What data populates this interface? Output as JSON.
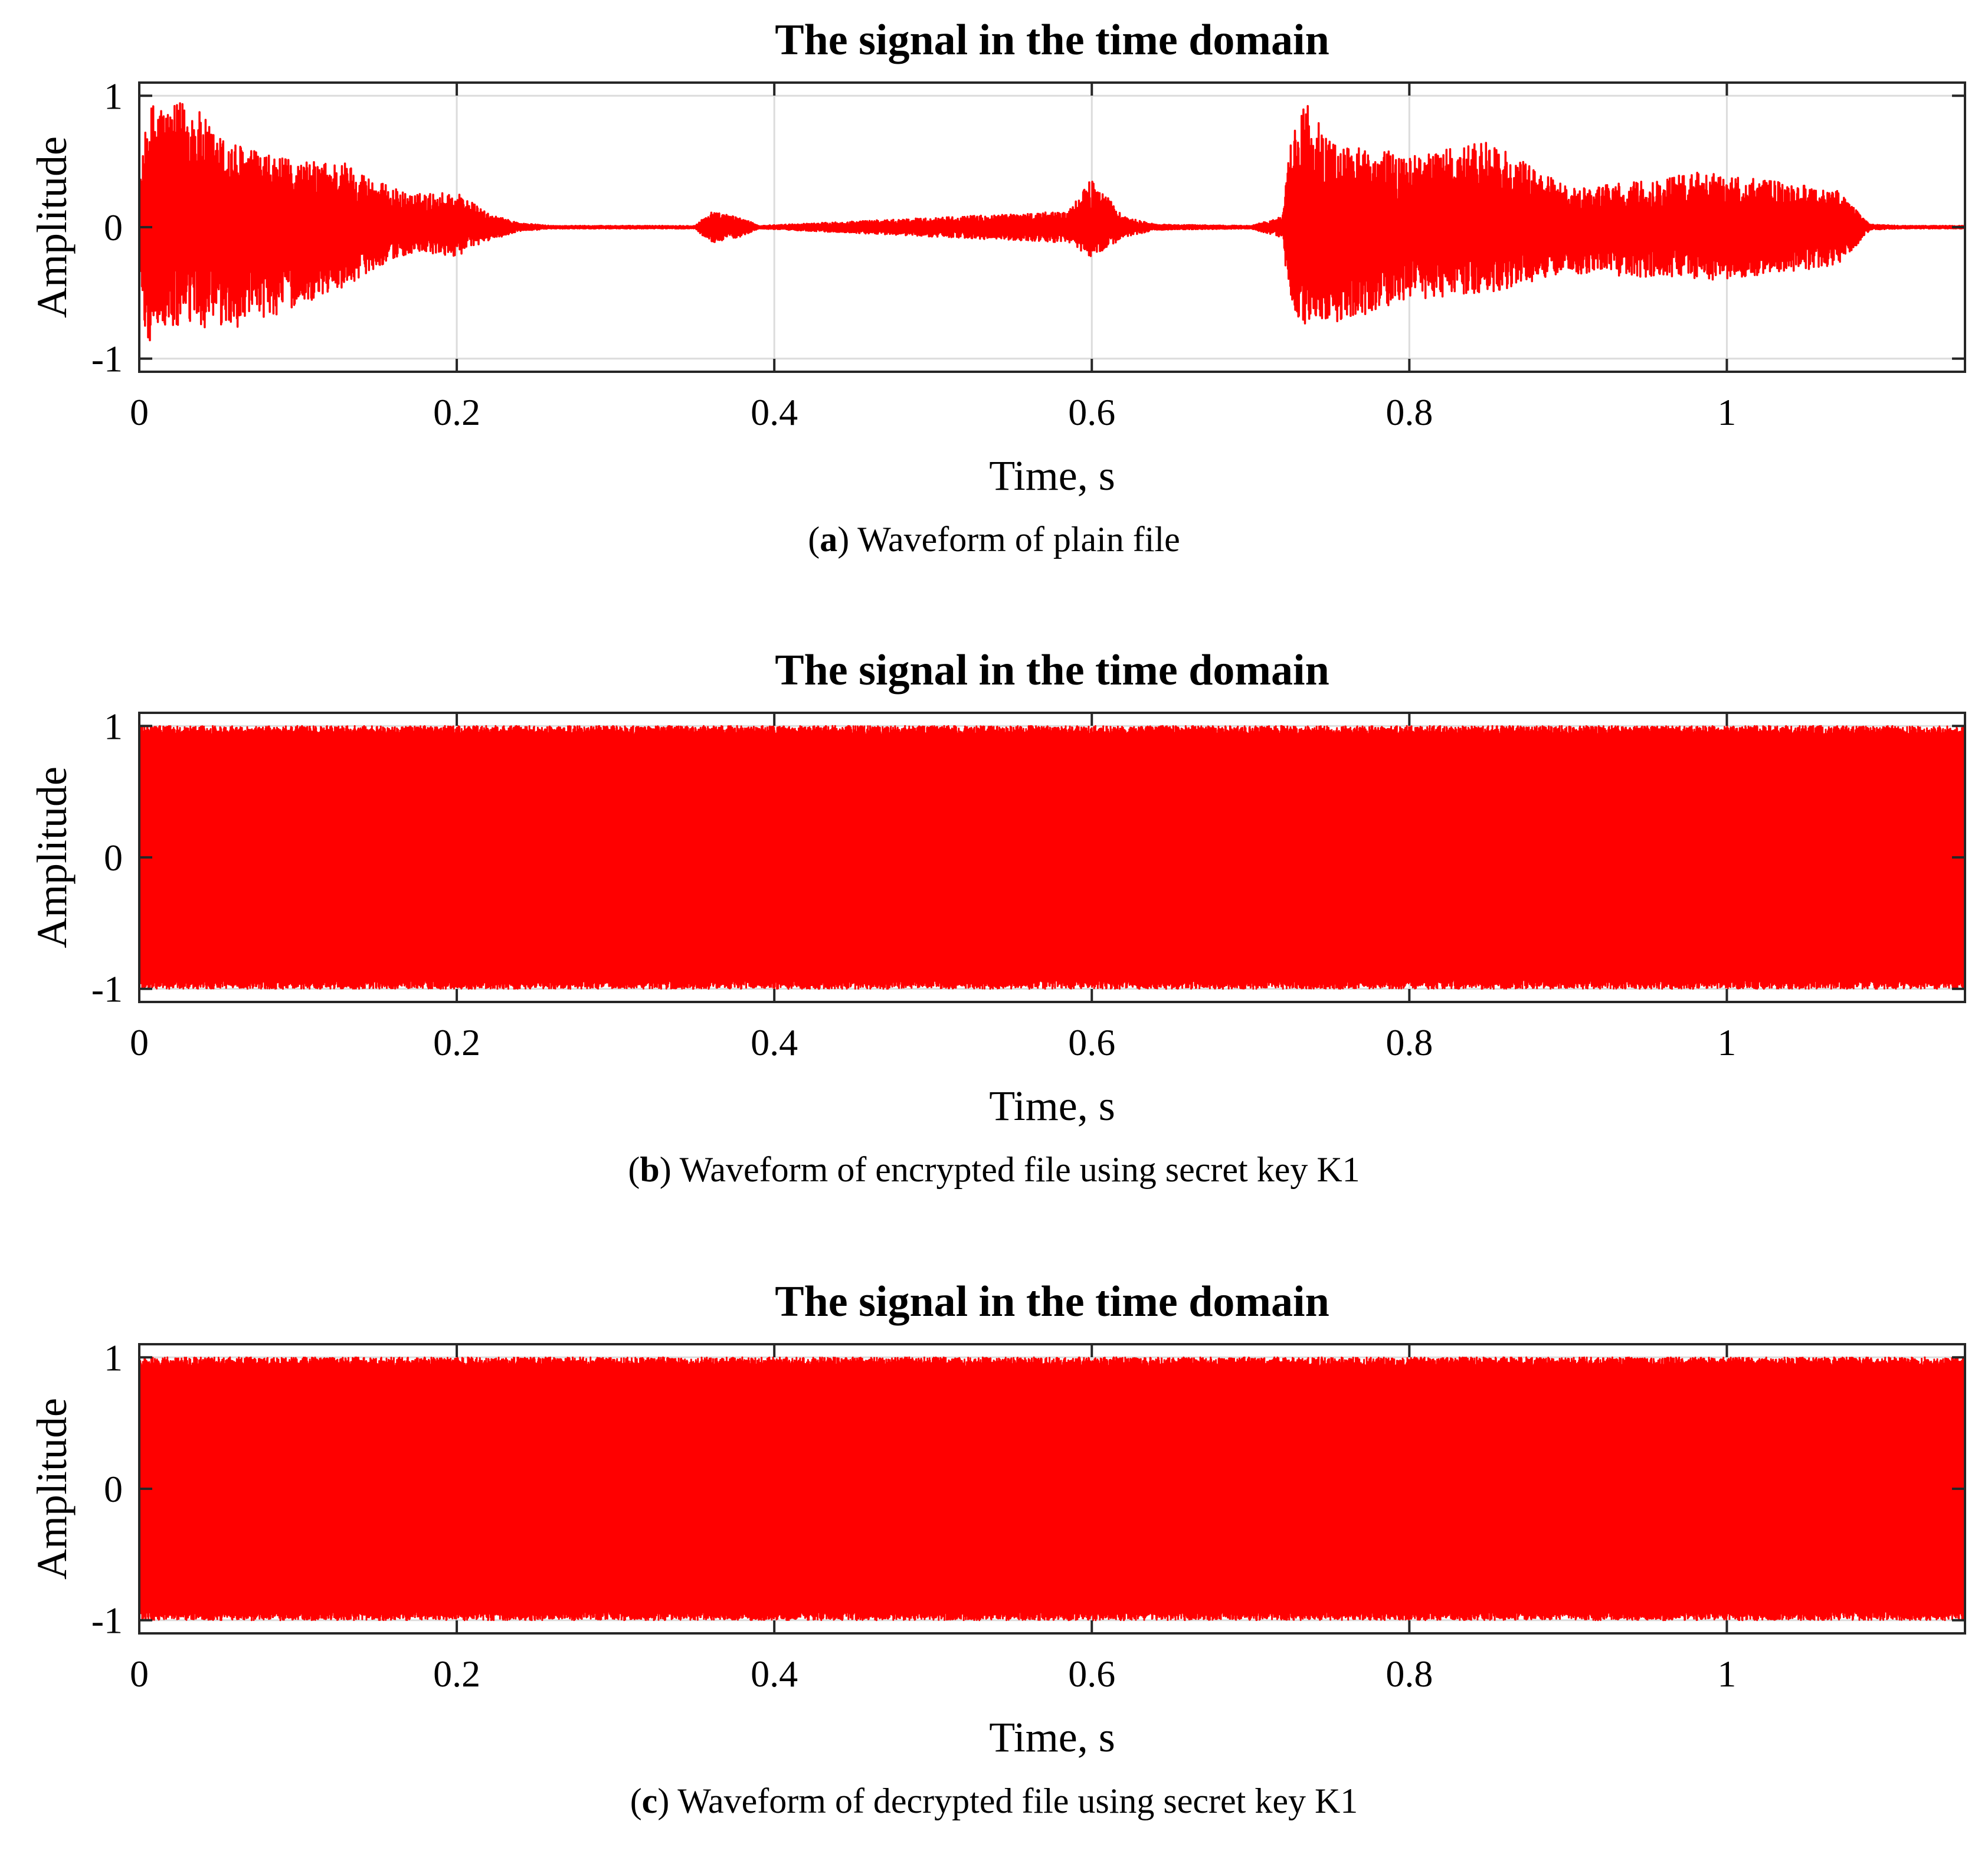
{
  "panels": [
    {
      "title": "The signal in the time domain",
      "xlabel": "Time, s",
      "ylabel": "Amplitude",
      "caption_label": "a",
      "caption_text": "Waveform of plain file",
      "x_ticks": [
        "0",
        "0.2",
        "0.4",
        "0.6",
        "0.8",
        "1"
      ],
      "y_ticks": [
        "1",
        "0",
        "-1"
      ]
    },
    {
      "title": "The signal in the time domain",
      "xlabel": "Time, s",
      "ylabel": "Amplitude",
      "caption_label": "b",
      "caption_text": "Waveform of encrypted file using secret key K1",
      "x_ticks": [
        "0",
        "0.2",
        "0.4",
        "0.6",
        "0.8",
        "1"
      ],
      "y_ticks": [
        "1",
        "0",
        "-1"
      ]
    },
    {
      "title": "The signal in the time domain",
      "xlabel": "Time, s",
      "ylabel": "Amplitude",
      "caption_label": "c",
      "caption_text": "Waveform of decrypted file using secret key K1",
      "x_ticks": [
        "0",
        "0.2",
        "0.4",
        "0.6",
        "0.8",
        "1"
      ],
      "y_ticks": [
        "1",
        "0",
        "-1"
      ]
    }
  ],
  "chart_data": [
    {
      "type": "line",
      "title": "The signal in the time domain",
      "xlabel": "Time, s",
      "ylabel": "Amplitude",
      "xlim": [
        0,
        1.15
      ],
      "ylim": [
        -1.1,
        1.1
      ],
      "x_ticks": [
        0,
        0.2,
        0.4,
        0.6,
        0.8,
        1
      ],
      "y_ticks": [
        -1,
        0,
        1
      ],
      "grid": true,
      "line_color": "#ff0000",
      "series": [
        {
          "envelope": {
            "t": [
              0,
              0.005,
              0.01,
              0.02,
              0.03,
              0.05,
              0.08,
              0.1,
              0.13,
              0.15,
              0.17,
              0.2,
              0.22,
              0.24,
              0.26,
              0.35,
              0.36,
              0.38,
              0.39,
              0.585,
              0.6,
              0.62,
              0.64,
              0.7,
              0.72,
              0.725,
              0.735,
              0.75,
              0.8,
              0.85,
              0.9,
              0.95,
              0.98,
              1.0,
              1.07,
              1.09,
              1.11,
              1.15
            ],
            "upper": [
              0.3,
              0.85,
              1.0,
              0.9,
              1.0,
              0.7,
              0.55,
              0.5,
              0.5,
              0.35,
              0.25,
              0.27,
              0.1,
              0.03,
              0.01,
              0.01,
              0.12,
              0.07,
              0.01,
              0.12,
              0.37,
              0.08,
              0.02,
              0.01,
              0.08,
              0.65,
              0.97,
              0.65,
              0.55,
              0.65,
              0.3,
              0.35,
              0.42,
              0.4,
              0.28,
              0.02,
              0.01,
              0.01
            ],
            "lower": [
              -0.3,
              -0.95,
              -0.75,
              -0.8,
              -0.75,
              -0.8,
              -0.7,
              -0.6,
              -0.45,
              -0.3,
              -0.2,
              -0.22,
              -0.1,
              -0.03,
              -0.01,
              -0.01,
              -0.12,
              -0.07,
              -0.01,
              -0.12,
              -0.23,
              -0.08,
              -0.02,
              -0.01,
              -0.08,
              -0.62,
              -0.75,
              -0.75,
              -0.55,
              -0.5,
              -0.35,
              -0.38,
              -0.4,
              -0.4,
              -0.3,
              -0.02,
              -0.01,
              -0.01
            ]
          }
        }
      ]
    },
    {
      "type": "line",
      "title": "The signal in the time domain",
      "xlabel": "Time, s",
      "ylabel": "Amplitude",
      "xlim": [
        0,
        1.15
      ],
      "ylim": [
        -1.1,
        1.1
      ],
      "x_ticks": [
        0,
        0.2,
        0.4,
        0.6,
        0.8,
        1
      ],
      "y_ticks": [
        -1,
        0,
        1
      ],
      "grid": true,
      "line_color": "#ff0000",
      "series": [
        {
          "envelope": {
            "t": [
              0,
              1.15
            ],
            "upper": [
              1.0,
              1.0
            ],
            "lower": [
              -1.0,
              -1.0
            ]
          }
        }
      ]
    },
    {
      "type": "line",
      "title": "The signal in the time domain",
      "xlabel": "Time, s",
      "ylabel": "Amplitude",
      "xlim": [
        0,
        1.15
      ],
      "ylim": [
        -1.1,
        1.1
      ],
      "x_ticks": [
        0,
        0.2,
        0.4,
        0.6,
        0.8,
        1
      ],
      "y_ticks": [
        -1,
        0,
        1
      ],
      "grid": true,
      "line_color": "#ff0000",
      "series": [
        {
          "envelope": {
            "t": [
              0,
              1.15
            ],
            "upper": [
              1.0,
              1.0
            ],
            "lower": [
              -1.0,
              -1.0
            ]
          }
        }
      ]
    }
  ]
}
